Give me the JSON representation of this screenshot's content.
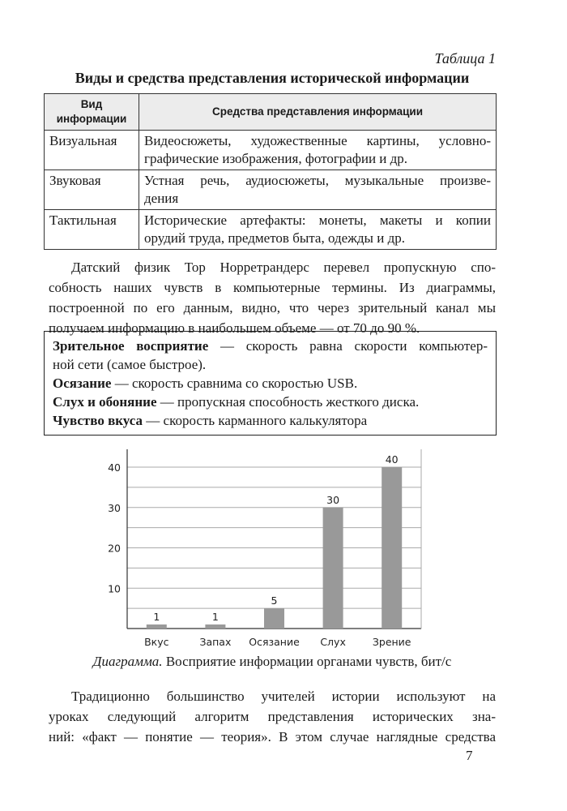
{
  "table_label": "Таблица 1",
  "table_title": "Виды и средства представления исторической информации",
  "table": {
    "headers": [
      "Вид информации",
      "Средства представления информации"
    ],
    "header_lines": [
      [
        "Вид",
        "информации"
      ]
    ],
    "rows": [
      {
        "type": "Визуальная",
        "lines": [
          "Видеосюжеты, художественные картины, условно-",
          "графические изображения, фотографии и др."
        ]
      },
      {
        "type": "Звуковая",
        "lines": [
          "Устная речь, аудиосюжеты, музыкальные произве-",
          "дения"
        ]
      },
      {
        "type": "Тактильная",
        "lines": [
          "Исторические артефакты: монеты, макеты и копии",
          "орудий труда, предметов быта, одежды и др."
        ]
      }
    ]
  },
  "paragraph1": [
    "Датский физик Тор Норретрандерс перевел пропускную спо-",
    "собность наших чувств в компьютерные термины. Из диаграммы,",
    "построенной по его данным, видно, что через зрительный канал мы",
    "получаем информацию в наибольшем объеме — от 70 до 90 %."
  ],
  "box": [
    {
      "term": "Зрительное восприятие",
      "text": " — скорость равна скорости компьютер-",
      "cont": "ной сети (самое быстрое)."
    },
    {
      "term": "Осязание",
      "text": " — скорость сравнима со скоростью USB."
    },
    {
      "term": "Слух и обоняние",
      "text": " — пропускная способность жесткого диска."
    },
    {
      "term": "Чувство вкуса",
      "text": " — скорость карманного калькулятора"
    }
  ],
  "chart_data": {
    "type": "bar",
    "categories": [
      "Вкус",
      "Запах",
      "Осязание",
      "Слух",
      "Зрение"
    ],
    "values": [
      1,
      1,
      5,
      30,
      40
    ],
    "data_labels": [
      "1",
      "1",
      "5",
      "30",
      "40"
    ],
    "yticks": [
      "10",
      "20",
      "30",
      "40"
    ],
    "ylim": [
      0,
      40
    ],
    "grid": true,
    "bar_color": "#999999",
    "title": "Восприятие информации органами чувств, бит/с"
  },
  "caption": {
    "prefix": "Диаграмма.",
    "text": " Восприятие информации органами чувств, бит/с"
  },
  "paragraph2": [
    "Традиционно большинство учителей истории используют на",
    "уроках следующий алгоритм представления исторических зна-",
    "ний: «факт — понятие — теория». В этом случае наглядные средства"
  ],
  "page_number": "7"
}
